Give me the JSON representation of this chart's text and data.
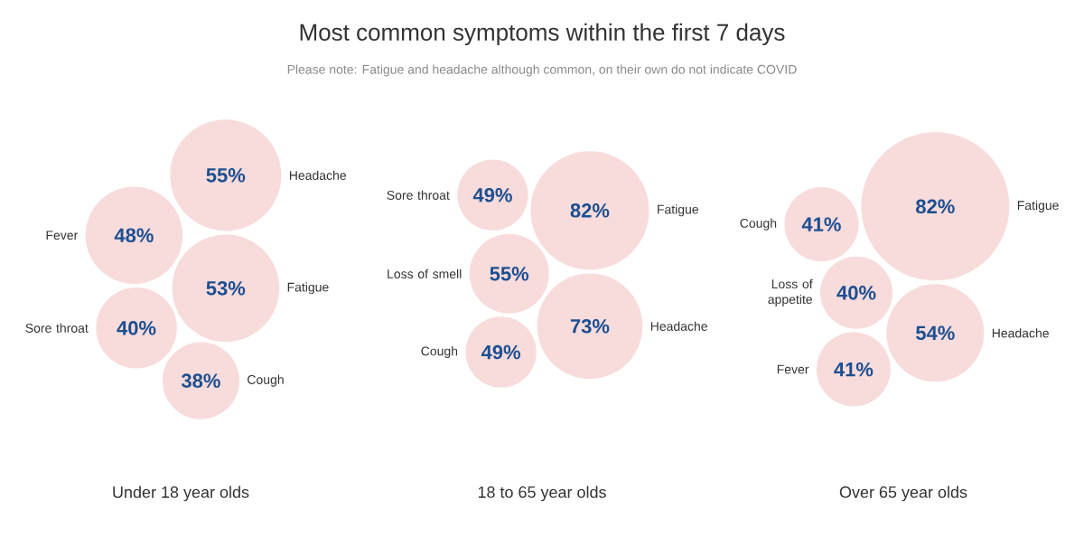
{
  "chart_data": [
    {
      "type": "other",
      "xlabel": "Under 18 year olds",
      "categories": [
        "Headache",
        "Fatigue",
        "Fever",
        "Sore throat",
        "Cough"
      ],
      "values": [
        55,
        53,
        48,
        40,
        38
      ],
      "value_labels": [
        "55%",
        "53%",
        "48%",
        "40%",
        "38%"
      ],
      "color": "#f8dcdc"
    },
    {
      "type": "other",
      "title": "Most common symptoms within the first 7 days",
      "subtitle": "Please note: Fatigue and headache although common, on their own do not indicate COVID",
      "xlabel": "18 to 65 year olds",
      "categories": [
        "Fatigue",
        "Headache",
        "Loss of smell",
        "Cough",
        "Sore throat"
      ],
      "values": [
        82,
        73,
        55,
        49,
        49
      ],
      "value_labels": [
        "82%",
        "73%",
        "55%",
        "49%",
        "49%"
      ],
      "color": "#f8dcdc"
    },
    {
      "type": "other",
      "xlabel": "Over 65 year olds",
      "categories": [
        "Fatigue",
        "Headache",
        "Loss of appetite",
        "Fever",
        "Cough"
      ],
      "values": [
        82,
        54,
        40,
        41,
        41
      ],
      "value_labels": [
        "82%",
        "54%",
        "40%",
        "41%",
        "41%"
      ],
      "color": "#f8dcdc"
    }
  ]
}
